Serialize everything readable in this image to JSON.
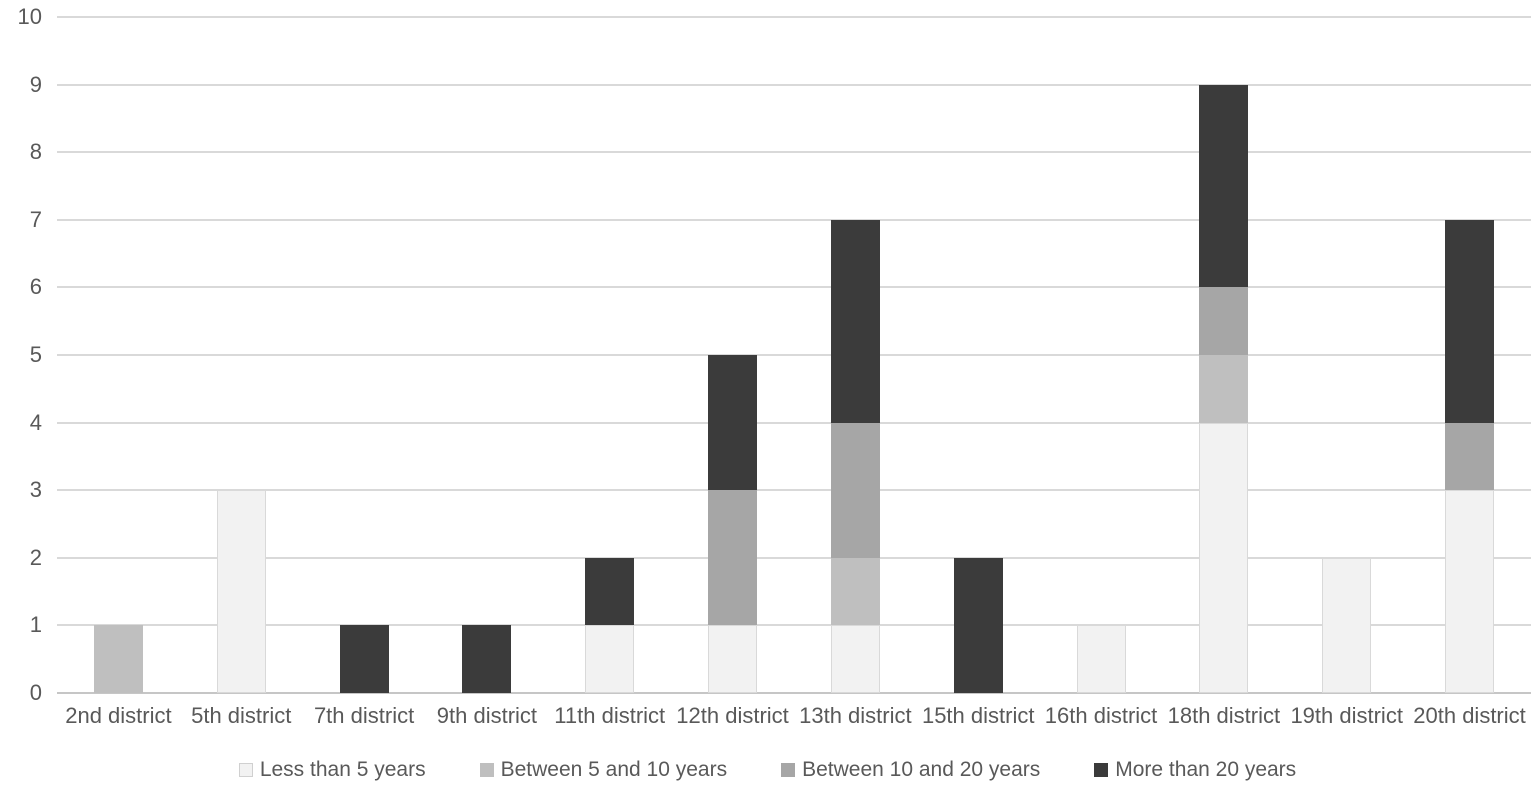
{
  "chart_data": {
    "type": "bar",
    "stacked": true,
    "title": "",
    "xlabel": "",
    "ylabel": "",
    "categories": [
      "2nd district",
      "5th district",
      "7th district",
      "9th district",
      "11th district",
      "12th district",
      "13th district",
      "15th district",
      "16th district",
      "18th district",
      "19th district",
      "20th district"
    ],
    "series": [
      {
        "name": "Less than 5 years",
        "color": "#f2f2f2",
        "values": [
          0,
          3,
          0,
          0,
          1,
          1,
          1,
          0,
          1,
          4,
          2,
          3
        ]
      },
      {
        "name": "Between 5 and 10 years",
        "color": "#bfbfbf",
        "values": [
          1,
          0,
          0,
          0,
          0,
          0,
          1,
          0,
          0,
          1,
          0,
          0
        ]
      },
      {
        "name": "Between 10 and 20 years",
        "color": "#a6a6a6",
        "values": [
          0,
          0,
          0,
          0,
          0,
          2,
          2,
          0,
          0,
          1,
          0,
          1
        ]
      },
      {
        "name": "More than 20 years",
        "color": "#3b3b3b",
        "values": [
          0,
          0,
          1,
          1,
          1,
          2,
          3,
          2,
          0,
          3,
          0,
          3
        ]
      }
    ],
    "ylim": [
      0,
      10
    ],
    "ytick_step": 1,
    "ytick_labels": [
      "0",
      "1",
      "2",
      "3",
      "4",
      "5",
      "6",
      "7",
      "8",
      "9",
      "10"
    ],
    "grid": true,
    "legend_position": "bottom",
    "colors": {
      "gridline": "#d9d9d9",
      "axis_line": "#c6c6c6",
      "tick_text": "#595959",
      "background": "#ffffff"
    }
  }
}
